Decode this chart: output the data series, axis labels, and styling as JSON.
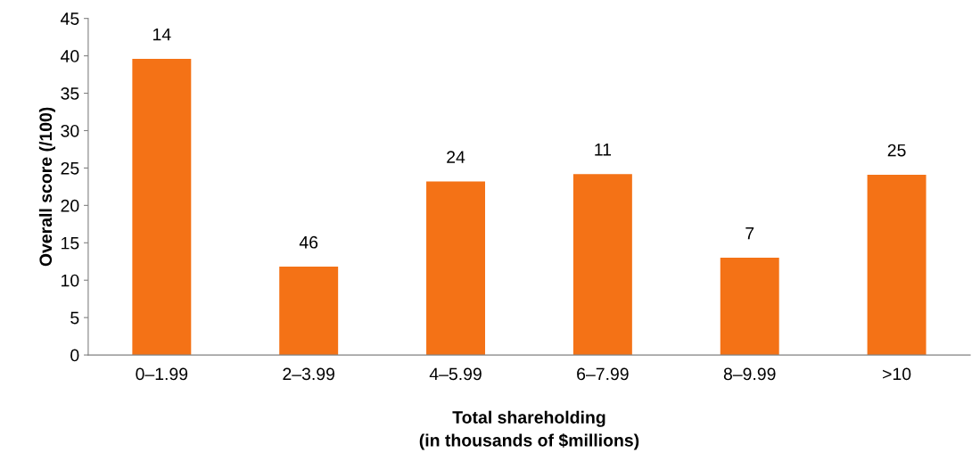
{
  "chart_data": {
    "type": "bar",
    "xlabel": "Total shareholding\n(in thousands of $millions)",
    "ylabel": "Overall score (/100)",
    "categories": [
      "0–1.99",
      "2–3.99",
      "4–5.99",
      "6–7.99",
      "8–9.99",
      ">10"
    ],
    "values": [
      39.6,
      11.8,
      23.2,
      24.2,
      13.0,
      24.1
    ],
    "color": "#f47216",
    "ylim": [
      0,
      45
    ],
    "yticks": [
      0,
      5,
      10,
      15,
      20,
      25,
      30,
      35,
      40,
      45
    ],
    "grid": false,
    "legend": false,
    "annotations": [
      {
        "text": "14",
        "x": "0–1.99",
        "y": 39.6
      },
      {
        "text": "46",
        "x": "2–3.99",
        "y": 11.8
      },
      {
        "text": "24",
        "x": "4–5.99",
        "y": 23.2
      },
      {
        "text": "11",
        "x": "6–7.99",
        "y": 24.2
      },
      {
        "text": "7",
        "x": "8–9.99",
        "y": 13.0
      },
      {
        "text": "25",
        "x": ">10",
        "y": 24.1
      }
    ]
  }
}
